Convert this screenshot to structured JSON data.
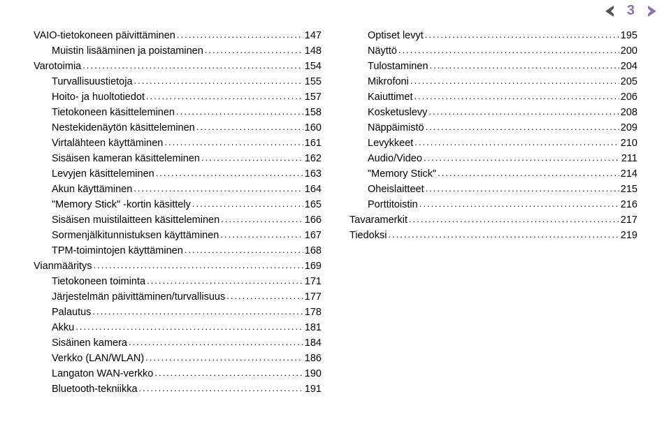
{
  "header": {
    "page_number": "3",
    "arrow_fill_dark": "#555555",
    "arrow_fill_accent": "#8f6fb3",
    "page_color": "#8f6fb3"
  },
  "columns": [
    {
      "id": "left",
      "rows": [
        {
          "indent": 0,
          "label": "VAIO-tietokoneen päivittäminen",
          "page": "147"
        },
        {
          "indent": 1,
          "label": "Muistin lisääminen ja poistaminen",
          "page": "148"
        },
        {
          "indent": 0,
          "label": "Varotoimia",
          "page": "154"
        },
        {
          "indent": 1,
          "label": "Turvallisuustietoja",
          "page": "155"
        },
        {
          "indent": 1,
          "label": "Hoito- ja huoltotiedot",
          "page": "157"
        },
        {
          "indent": 1,
          "label": "Tietokoneen käsitteleminen",
          "page": "158"
        },
        {
          "indent": 1,
          "label": "Nestekidenäytön käsitteleminen",
          "page": "160"
        },
        {
          "indent": 1,
          "label": "Virtalähteen käyttäminen",
          "page": "161"
        },
        {
          "indent": 1,
          "label": "Sisäisen kameran käsitteleminen",
          "page": "162"
        },
        {
          "indent": 1,
          "label": "Levyjen käsitteleminen",
          "page": "163"
        },
        {
          "indent": 1,
          "label": "Akun käyttäminen",
          "page": "164"
        },
        {
          "indent": 1,
          "label": "\"Memory Stick\" -kortin käsittely",
          "page": "165"
        },
        {
          "indent": 1,
          "label": "Sisäisen muistilaitteen käsitteleminen",
          "page": "166"
        },
        {
          "indent": 1,
          "label": "Sormenjälkitunnistuksen käyttäminen",
          "page": "167"
        },
        {
          "indent": 1,
          "label": "TPM-toimintojen käyttäminen",
          "page": "168"
        },
        {
          "indent": 0,
          "label": "Vianmääritys",
          "page": "169"
        },
        {
          "indent": 1,
          "label": "Tietokoneen toiminta",
          "page": "171"
        },
        {
          "indent": 1,
          "label": "Järjestelmän päivittäminen/turvallisuus",
          "page": "177"
        },
        {
          "indent": 1,
          "label": "Palautus",
          "page": "178"
        },
        {
          "indent": 1,
          "label": "Akku",
          "page": "181"
        },
        {
          "indent": 1,
          "label": "Sisäinen kamera",
          "page": "184"
        },
        {
          "indent": 1,
          "label": "Verkko (LAN/WLAN)",
          "page": "186"
        },
        {
          "indent": 1,
          "label": "Langaton WAN-verkko",
          "page": "190"
        },
        {
          "indent": 1,
          "label": "Bluetooth-tekniikka",
          "page": "191"
        }
      ]
    },
    {
      "id": "right",
      "rows": [
        {
          "indent": 1,
          "label": "Optiset levyt",
          "page": "195"
        },
        {
          "indent": 1,
          "label": "Näyttö",
          "page": "200"
        },
        {
          "indent": 1,
          "label": "Tulostaminen",
          "page": "204"
        },
        {
          "indent": 1,
          "label": "Mikrofoni",
          "page": "205"
        },
        {
          "indent": 1,
          "label": "Kaiuttimet",
          "page": "206"
        },
        {
          "indent": 1,
          "label": "Kosketuslevy",
          "page": "208"
        },
        {
          "indent": 1,
          "label": "Näppäimistö",
          "page": "209"
        },
        {
          "indent": 1,
          "label": "Levykkeet",
          "page": "210"
        },
        {
          "indent": 1,
          "label": "Audio/Video",
          "page": "211"
        },
        {
          "indent": 1,
          "label": "\"Memory Stick\"",
          "page": "214"
        },
        {
          "indent": 1,
          "label": "Oheislaitteet",
          "page": "215"
        },
        {
          "indent": 1,
          "label": "Porttitoistin",
          "page": "216"
        },
        {
          "indent": 0,
          "label": "Tavaramerkit",
          "page": "217"
        },
        {
          "indent": 0,
          "label": "Tiedoksi",
          "page": "219"
        }
      ]
    }
  ]
}
